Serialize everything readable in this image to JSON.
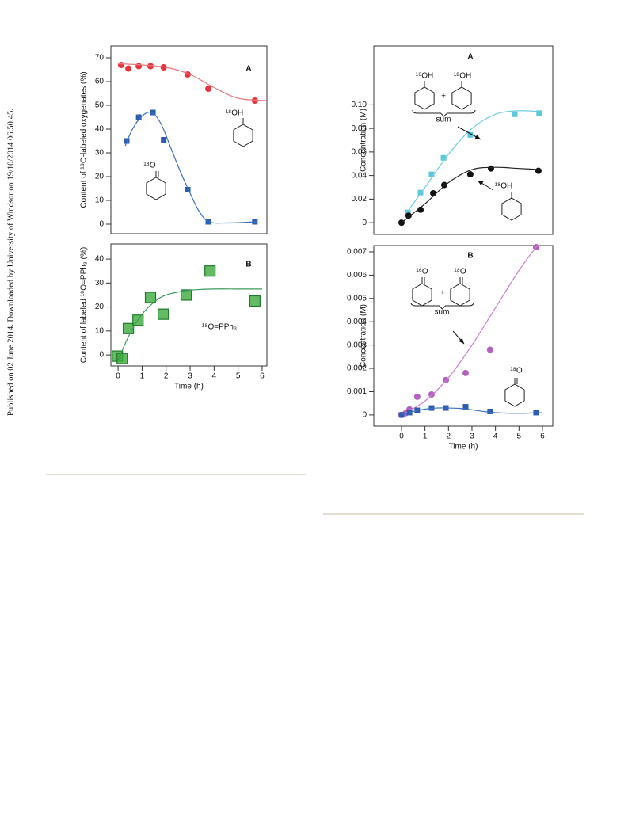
{
  "side_note": "Published on 02 June 2014. Downloaded by University of Windsor on 19/10/2014 06:50:45.",
  "chart_data": [
    {
      "type": "scatter",
      "ylabel": "Content of ¹⁸O-labeled oxygenates  (%)",
      "annotations": [
        "A",
        "¹⁸OH",
        "¹⁸O"
      ],
      "xlim": [
        -0.3,
        6.2
      ],
      "ylim": [
        -4,
        75
      ],
      "yticks": [
        0,
        10,
        20,
        30,
        40,
        50,
        60,
        70
      ],
      "series": [
        {
          "color": "#e8333a",
          "marker": "circle",
          "x": [
            0.13,
            0.43,
            0.86,
            1.35,
            1.9,
            2.9,
            3.76,
            5.7
          ],
          "values": [
            67,
            65.5,
            66.5,
            66.5,
            66,
            63,
            57,
            52
          ]
        },
        {
          "color": "#e87a7e",
          "marker": "none",
          "x": [
            0,
            1,
            2,
            3,
            4,
            5,
            6.2
          ],
          "values": [
            67.5,
            67,
            66,
            63,
            57.5,
            53,
            52
          ]
        },
        {
          "color": "#2a5db0",
          "marker": "square",
          "x": [
            0.36,
            0.86,
            1.45,
            1.9,
            2.9,
            3.76,
            5.7
          ],
          "values": [
            35,
            45,
            47,
            35.5,
            14.5,
            1,
            1
          ]
        },
        {
          "color": "#3a6fbf",
          "marker": "none",
          "x": [
            0.3,
            0.6,
            1,
            1.4,
            1.8,
            2.2,
            2.6,
            3,
            3.4,
            3.8,
            4.5,
            5.8
          ],
          "values": [
            33,
            40,
            45.5,
            47,
            42,
            32,
            22,
            13,
            5,
            1,
            0.5,
            1
          ]
        }
      ]
    },
    {
      "type": "scatter",
      "ylabel": "Content of labeled ¹⁸O=PPh₃ (%)",
      "xlabel": "Time (h)",
      "annotations": [
        "B",
        "¹⁸O=PPh₃"
      ],
      "xlim": [
        -0.3,
        6.2
      ],
      "ylim": [
        -4.6,
        46.3
      ],
      "xticks": [
        0,
        1,
        2,
        3,
        4,
        5,
        6
      ],
      "yticks": [
        0,
        10,
        20,
        30,
        40
      ],
      "series": [
        {
          "color": "#3cab3c",
          "marker": "big-square",
          "x": [
            -0.03,
            0.17,
            0.43,
            0.83,
            1.35,
            1.88,
            2.84,
            3.83,
            5.7
          ],
          "values": [
            -0.5,
            -1.5,
            11,
            14.5,
            24,
            17,
            25,
            35,
            22.5
          ]
        },
        {
          "color": "#3a9a5a",
          "marker": "none",
          "x": [
            0,
            0.5,
            1,
            1.5,
            2,
            3,
            4,
            5,
            6
          ],
          "values": [
            -2,
            9,
            17,
            22,
            25,
            27,
            27.5,
            27.5,
            27.5
          ]
        }
      ]
    },
    {
      "type": "scatter",
      "ylabel": "Concentration  (M)",
      "annotations": [
        "A",
        "¹⁶OH",
        "+",
        "¹⁸OH",
        "sum",
        "¹⁸OH"
      ],
      "xlim": [
        -1.18,
        6.44
      ],
      "ylim": [
        -0.01,
        0.15
      ],
      "yticks": [
        0,
        0.02,
        0.04,
        0.06,
        0.08,
        {
          "value": 0.1,
          "label": "0.10"
        }
      ],
      "series": [
        {
          "color": "#5bc8dd",
          "marker": "square",
          "x": [
            0.27,
            0.81,
            1.28,
            1.79,
            2.93,
            4.82,
            5.86
          ],
          "values": [
            0.0087,
            0.0255,
            0.041,
            0.055,
            0.0745,
            0.092,
            0.093
          ]
        },
        {
          "color": "#6ccfe0",
          "marker": "none",
          "x": [
            0.2,
            1,
            2,
            3,
            4,
            5,
            6
          ],
          "values": [
            0.008,
            0.03,
            0.058,
            0.08,
            0.092,
            0.095,
            0.094
          ]
        },
        {
          "color": "#111111",
          "marker": "circle",
          "x": [
            0,
            0.3,
            0.81,
            1.35,
            1.82,
            2.93,
            3.81,
            5.83
          ],
          "values": [
            0,
            0.006,
            0.011,
            0.025,
            0.032,
            0.041,
            0.046,
            0.044
          ]
        },
        {
          "color": "#222222",
          "marker": "none",
          "x": [
            0,
            1,
            2,
            3,
            4,
            5,
            6
          ],
          "values": [
            0,
            0.016,
            0.034,
            0.045,
            0.047,
            0.046,
            0.045
          ]
        }
      ]
    },
    {
      "type": "scatter",
      "ylabel": "Concentration  (M)",
      "xlabel": "Time (h)",
      "annotations": [
        "B",
        "¹⁶O",
        "+",
        "¹⁸O",
        "sum",
        "¹⁸O"
      ],
      "xlim": [
        -1.18,
        6.44
      ],
      "ylim": [
        -0.00048,
        0.00727
      ],
      "xticks": [
        0,
        1,
        2,
        3,
        4,
        5,
        6
      ],
      "yticks": [
        0,
        0.001,
        0.002,
        0.003,
        0.004,
        0.005,
        0.006,
        0.007
      ],
      "series": [
        {
          "color": "#b55fc0",
          "marker": "circle",
          "x": [
            0,
            0.17,
            0.34,
            0.67,
            1.28,
            1.89,
            2.73,
            3.77,
            5.73
          ],
          "values": [
            0,
            7e-05,
            0.00024,
            0.00078,
            0.00088,
            0.0015,
            0.0018,
            0.0028,
            0.0072
          ]
        },
        {
          "color": "#c97fd0",
          "marker": "none",
          "x": [
            0,
            1,
            2,
            3,
            4,
            5,
            5.8
          ],
          "values": [
            0,
            0.0006,
            0.0016,
            0.003,
            0.0046,
            0.0062,
            0.0073
          ]
        },
        {
          "color": "#2a5db0",
          "marker": "square",
          "x": [
            0,
            0.34,
            0.67,
            1.28,
            1.89,
            2.73,
            3.77,
            5.73
          ],
          "values": [
            0,
            0.0001,
            0.0002,
            0.0003,
            0.0003,
            0.00035,
            0.00015,
            0.0001
          ]
        },
        {
          "color": "#3a6fbf",
          "marker": "none",
          "x": [
            0,
            0.5,
            1,
            1.5,
            2,
            2.5,
            3,
            3.5,
            4,
            5,
            6
          ],
          "values": [
            0,
            0.00015,
            0.00025,
            0.0003,
            0.0003,
            0.00028,
            0.00022,
            0.00015,
            0.0001,
            7e-05,
            0.0001
          ]
        }
      ]
    }
  ]
}
